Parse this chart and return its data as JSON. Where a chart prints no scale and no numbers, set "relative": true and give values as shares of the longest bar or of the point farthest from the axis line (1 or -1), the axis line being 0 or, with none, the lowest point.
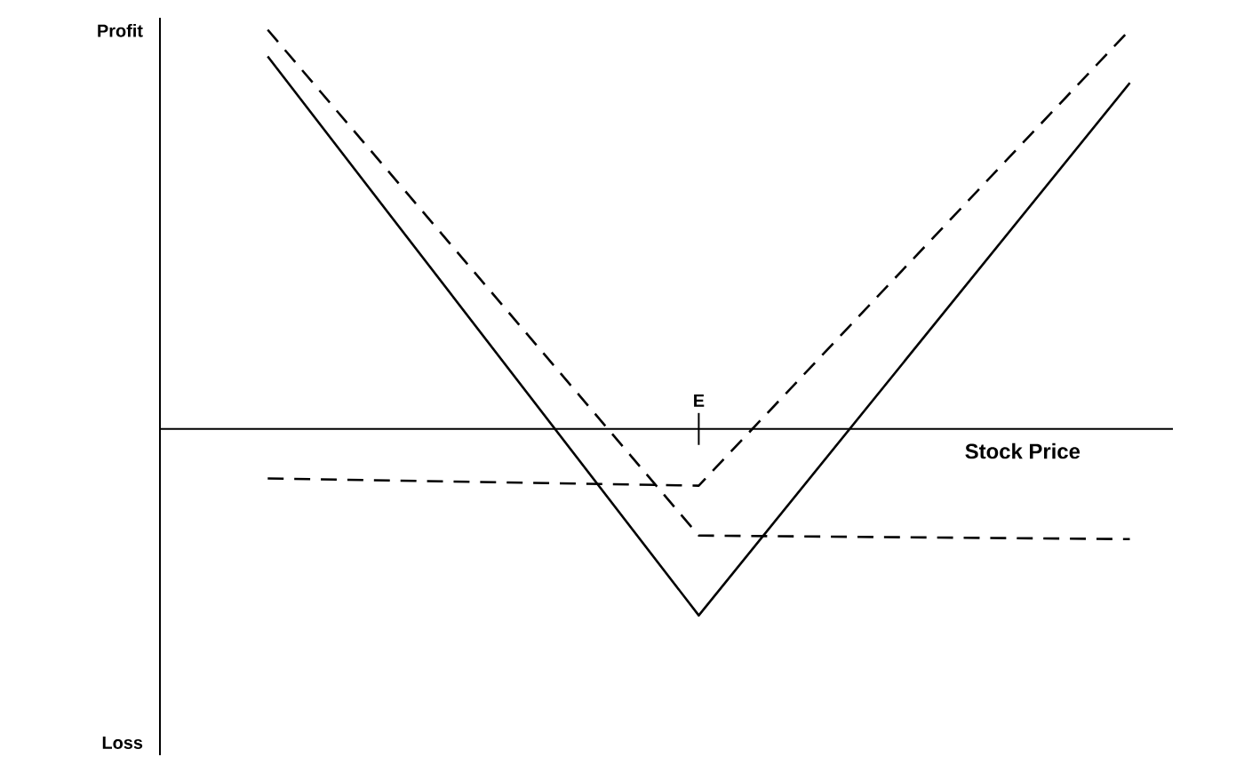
{
  "chart_data": {
    "type": "line",
    "relative": true,
    "xlabel": "Stock Price",
    "annotations": [
      "Profit",
      "Loss",
      "E"
    ],
    "categories": [
      null,
      null,
      null
    ],
    "series": [
      {
        "color": "#000000",
        "line_style": "solid",
        "values": [
          0.933,
          -0.467,
          0.867
        ]
      },
      {
        "color": "#000000",
        "line_style": "dashed",
        "values": [
          1,
          -0.267,
          -0.276
        ]
      },
      {
        "color": "#000000",
        "line_style": "dashed",
        "values": [
          -0.124,
          -0.142,
          1
        ]
      }
    ]
  }
}
